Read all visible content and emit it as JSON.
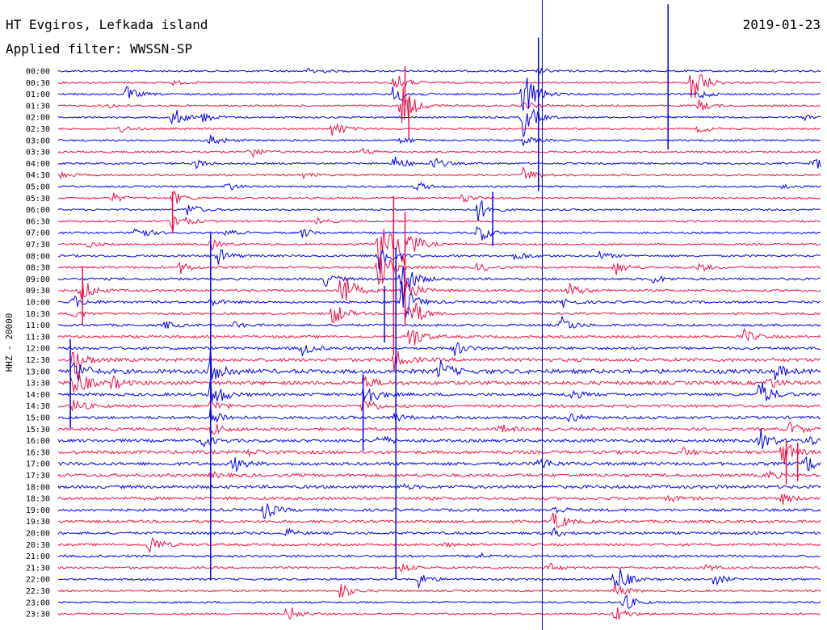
{
  "chart_data": {
    "type": "line",
    "station": "HT Evgiros, Lefkada island",
    "date": "2019-01-23",
    "filter": "Applied filter: WWSSN-SP",
    "ylabel": "HHZ - 20000",
    "row_labels": [
      "00:00",
      "00:30",
      "01:00",
      "01:30",
      "02:00",
      "02:30",
      "03:00",
      "03:30",
      "04:00",
      "04:30",
      "05:00",
      "05:30",
      "06:00",
      "06:30",
      "07:00",
      "07:30",
      "08:00",
      "08:30",
      "09:00",
      "09:30",
      "10:00",
      "10:30",
      "11:00",
      "11:30",
      "12:00",
      "12:30",
      "13:00",
      "13:30",
      "14:00",
      "14:30",
      "15:00",
      "15:30",
      "16:00",
      "16:30",
      "17:00",
      "17:30",
      "18:00",
      "18:30",
      "19:00",
      "19:30",
      "20:00",
      "20:30",
      "21:00",
      "21:30",
      "22:00",
      "22:30",
      "23:00",
      "23:30"
    ],
    "series_colors": [
      "#0000ee",
      "#ee1144"
    ],
    "marker_color": "#0000cc",
    "marker_fraction": 0.635,
    "noise_levels": [
      1,
      1,
      1,
      1,
      1,
      1,
      1,
      1,
      1,
      1,
      1,
      1,
      1,
      1,
      1,
      1,
      1.2,
      1.2,
      1.3,
      1.3,
      1.3,
      1.2,
      1.3,
      1.4,
      1.5,
      1.9,
      2.3,
      2,
      1.6,
      1.5,
      1.6,
      1.6,
      1.6,
      1.8,
      1.8,
      1.7,
      1.7,
      1.6,
      1.5,
      1.5,
      1.4,
      1.3,
      1.3,
      1.2,
      1.1,
      1.1,
      1,
      1
    ],
    "events": [
      {
        "row": 0,
        "pos": 0.33,
        "amp": 6
      },
      {
        "row": 0,
        "pos": 0.63,
        "amp": 3
      },
      {
        "row": 1,
        "pos": 0.44,
        "amp": 14
      },
      {
        "row": 1,
        "pos": 0.83,
        "amp": 38
      },
      {
        "row": 1,
        "pos": 0.15,
        "amp": 3
      },
      {
        "row": 2,
        "pos": 0.09,
        "amp": 10
      },
      {
        "row": 2,
        "pos": 0.44,
        "amp": 16
      },
      {
        "row": 2,
        "pos": 0.61,
        "amp": 40
      },
      {
        "row": 2,
        "pos": 0.84,
        "amp": 6
      },
      {
        "row": 3,
        "pos": 0.06,
        "amp": 4
      },
      {
        "row": 3,
        "pos": 0.45,
        "amp": 34
      },
      {
        "row": 3,
        "pos": 0.61,
        "amp": 6
      },
      {
        "row": 3,
        "pos": 0.84,
        "amp": 8
      },
      {
        "row": 4,
        "pos": 0.15,
        "amp": 14
      },
      {
        "row": 4,
        "pos": 0.19,
        "amp": 6
      },
      {
        "row": 4,
        "pos": 0.61,
        "amp": 26
      },
      {
        "row": 4,
        "pos": 0.98,
        "amp": 4
      },
      {
        "row": 5,
        "pos": 0.08,
        "amp": 5
      },
      {
        "row": 5,
        "pos": 0.36,
        "amp": 12
      },
      {
        "row": 5,
        "pos": 0.84,
        "amp": 5
      },
      {
        "row": 6,
        "pos": 0.2,
        "amp": 9
      },
      {
        "row": 6,
        "pos": 0.45,
        "amp": 5
      },
      {
        "row": 6,
        "pos": 0.61,
        "amp": 6
      },
      {
        "row": 7,
        "pos": 0.25,
        "amp": 10
      },
      {
        "row": 7,
        "pos": 0.4,
        "amp": 4
      },
      {
        "row": 8,
        "pos": 0.18,
        "amp": 6
      },
      {
        "row": 8,
        "pos": 0.44,
        "amp": 12
      },
      {
        "row": 8,
        "pos": 0.49,
        "amp": 9
      },
      {
        "row": 8,
        "pos": 0.99,
        "amp": 9
      },
      {
        "row": 9,
        "pos": 0.0,
        "amp": 6
      },
      {
        "row": 9,
        "pos": 0.32,
        "amp": 4
      },
      {
        "row": 9,
        "pos": 0.61,
        "amp": 10
      },
      {
        "row": 10,
        "pos": 0.22,
        "amp": 6
      },
      {
        "row": 10,
        "pos": 0.47,
        "amp": 7
      },
      {
        "row": 10,
        "pos": 0.95,
        "amp": 3
      },
      {
        "row": 11,
        "pos": 0.07,
        "amp": 7
      },
      {
        "row": 11,
        "pos": 0.15,
        "amp": 10
      },
      {
        "row": 11,
        "pos": 0.53,
        "amp": 7
      },
      {
        "row": 12,
        "pos": 0.17,
        "amp": 9
      },
      {
        "row": 12,
        "pos": 0.55,
        "amp": 16
      },
      {
        "row": 13,
        "pos": 0.15,
        "amp": 18
      },
      {
        "row": 13,
        "pos": 0.34,
        "amp": 4
      },
      {
        "row": 14,
        "pos": 0.1,
        "amp": 14
      },
      {
        "row": 14,
        "pos": 0.22,
        "amp": 4
      },
      {
        "row": 14,
        "pos": 0.32,
        "amp": 6
      },
      {
        "row": 14,
        "pos": 0.55,
        "amp": 14
      },
      {
        "row": 15,
        "pos": 0.04,
        "amp": 4
      },
      {
        "row": 15,
        "pos": 0.2,
        "amp": 7
      },
      {
        "row": 15,
        "pos": 0.42,
        "amp": 45
      },
      {
        "row": 15,
        "pos": 0.45,
        "amp": 45
      },
      {
        "row": 16,
        "pos": 0.21,
        "amp": 10
      },
      {
        "row": 16,
        "pos": 0.42,
        "amp": 30
      },
      {
        "row": 16,
        "pos": 0.6,
        "amp": 7
      },
      {
        "row": 16,
        "pos": 0.71,
        "amp": 5
      },
      {
        "row": 17,
        "pos": 0.16,
        "amp": 8
      },
      {
        "row": 17,
        "pos": 0.42,
        "amp": 30
      },
      {
        "row": 17,
        "pos": 0.55,
        "amp": 6
      },
      {
        "row": 17,
        "pos": 0.73,
        "amp": 10
      },
      {
        "row": 17,
        "pos": 0.84,
        "amp": 6
      },
      {
        "row": 18,
        "pos": 0.35,
        "amp": 9
      },
      {
        "row": 18,
        "pos": 0.45,
        "amp": 34
      },
      {
        "row": 18,
        "pos": 0.78,
        "amp": 6
      },
      {
        "row": 19,
        "pos": 0.03,
        "amp": 18
      },
      {
        "row": 19,
        "pos": 0.37,
        "amp": 34
      },
      {
        "row": 19,
        "pos": 0.45,
        "amp": 30
      },
      {
        "row": 19,
        "pos": 0.67,
        "amp": 10
      },
      {
        "row": 20,
        "pos": 0.02,
        "amp": 8
      },
      {
        "row": 20,
        "pos": 0.2,
        "amp": 5
      },
      {
        "row": 20,
        "pos": 0.45,
        "amp": 30
      },
      {
        "row": 20,
        "pos": 0.66,
        "amp": 7
      },
      {
        "row": 21,
        "pos": 0.02,
        "amp": 6
      },
      {
        "row": 21,
        "pos": 0.36,
        "amp": 18
      },
      {
        "row": 21,
        "pos": 0.46,
        "amp": 28
      },
      {
        "row": 22,
        "pos": 0.14,
        "amp": 5
      },
      {
        "row": 22,
        "pos": 0.23,
        "amp": 4
      },
      {
        "row": 22,
        "pos": 0.66,
        "amp": 12
      },
      {
        "row": 23,
        "pos": 0.46,
        "amp": 20
      },
      {
        "row": 23,
        "pos": 0.9,
        "amp": 9
      },
      {
        "row": 24,
        "pos": 0.32,
        "amp": 9
      },
      {
        "row": 24,
        "pos": 0.52,
        "amp": 9
      },
      {
        "row": 25,
        "pos": 0.02,
        "amp": 22
      },
      {
        "row": 25,
        "pos": 0.44,
        "amp": 14
      },
      {
        "row": 26,
        "pos": 0.02,
        "amp": 20
      },
      {
        "row": 26,
        "pos": 0.2,
        "amp": 28
      },
      {
        "row": 26,
        "pos": 0.5,
        "amp": 14
      },
      {
        "row": 26,
        "pos": 0.94,
        "amp": 10
      },
      {
        "row": 27,
        "pos": 0.02,
        "amp": 26
      },
      {
        "row": 27,
        "pos": 0.07,
        "amp": 8
      },
      {
        "row": 27,
        "pos": 0.4,
        "amp": 10
      },
      {
        "row": 27,
        "pos": 0.93,
        "amp": 8
      },
      {
        "row": 28,
        "pos": 0.2,
        "amp": 24
      },
      {
        "row": 28,
        "pos": 0.4,
        "amp": 22
      },
      {
        "row": 28,
        "pos": 0.67,
        "amp": 8
      },
      {
        "row": 28,
        "pos": 0.92,
        "amp": 20
      },
      {
        "row": 29,
        "pos": 0.02,
        "amp": 10
      },
      {
        "row": 29,
        "pos": 0.2,
        "amp": 8
      },
      {
        "row": 29,
        "pos": 0.4,
        "amp": 14
      },
      {
        "row": 30,
        "pos": 0.2,
        "amp": 14
      },
      {
        "row": 30,
        "pos": 0.44,
        "amp": 6
      },
      {
        "row": 30,
        "pos": 0.67,
        "amp": 7
      },
      {
        "row": 31,
        "pos": 0.2,
        "amp": 10
      },
      {
        "row": 31,
        "pos": 0.58,
        "amp": 6
      },
      {
        "row": 31,
        "pos": 0.96,
        "amp": 10
      },
      {
        "row": 32,
        "pos": 0.19,
        "amp": 8
      },
      {
        "row": 32,
        "pos": 0.42,
        "amp": 8
      },
      {
        "row": 32,
        "pos": 0.92,
        "amp": 16
      },
      {
        "row": 32,
        "pos": 0.98,
        "amp": 8
      },
      {
        "row": 33,
        "pos": 0.25,
        "amp": 4
      },
      {
        "row": 33,
        "pos": 0.82,
        "amp": 5
      },
      {
        "row": 33,
        "pos": 0.95,
        "amp": 18
      },
      {
        "row": 34,
        "pos": 0.23,
        "amp": 10
      },
      {
        "row": 34,
        "pos": 0.63,
        "amp": 10
      },
      {
        "row": 34,
        "pos": 0.98,
        "amp": 12
      },
      {
        "row": 35,
        "pos": 0.2,
        "amp": 4
      },
      {
        "row": 35,
        "pos": 0.93,
        "amp": 6
      },
      {
        "row": 36,
        "pos": 0.45,
        "amp": 3
      },
      {
        "row": 37,
        "pos": 0.8,
        "amp": 4
      },
      {
        "row": 37,
        "pos": 0.95,
        "amp": 6
      },
      {
        "row": 38,
        "pos": 0.27,
        "amp": 12
      },
      {
        "row": 38,
        "pos": 0.65,
        "amp": 5
      },
      {
        "row": 39,
        "pos": 0.65,
        "amp": 14
      },
      {
        "row": 40,
        "pos": 0.3,
        "amp": 5
      },
      {
        "row": 40,
        "pos": 0.65,
        "amp": 5
      },
      {
        "row": 41,
        "pos": 0.12,
        "amp": 14
      },
      {
        "row": 41,
        "pos": 0.5,
        "amp": 4
      },
      {
        "row": 42,
        "pos": 0.55,
        "amp": 4
      },
      {
        "row": 43,
        "pos": 0.45,
        "amp": 6
      },
      {
        "row": 43,
        "pos": 0.64,
        "amp": 8
      },
      {
        "row": 43,
        "pos": 0.85,
        "amp": 4
      },
      {
        "row": 44,
        "pos": 0.47,
        "amp": 12
      },
      {
        "row": 44,
        "pos": 0.73,
        "amp": 24
      },
      {
        "row": 44,
        "pos": 0.86,
        "amp": 8
      },
      {
        "row": 45,
        "pos": 0.37,
        "amp": 12
      },
      {
        "row": 45,
        "pos": 0.73,
        "amp": 10
      },
      {
        "row": 46,
        "pos": 0.74,
        "amp": 14
      },
      {
        "row": 47,
        "pos": 0.3,
        "amp": 12
      },
      {
        "row": 47,
        "pos": 0.73,
        "amp": 12
      }
    ],
    "spikes": [
      {
        "row": 1,
        "pos": 0.455,
        "up": 20,
        "down": 28
      },
      {
        "row": 3,
        "pos": 0.46,
        "up": 10,
        "down": 40
      },
      {
        "row": 15,
        "pos": 0.44,
        "up": 60,
        "down": 10
      },
      {
        "row": 19,
        "pos": 0.44,
        "up": 60,
        "down": 80
      },
      {
        "row": 20,
        "pos": 0.428,
        "up": 20,
        "down": 50
      },
      {
        "row": 15,
        "pos": 0.455,
        "up": 40,
        "down": 100
      },
      {
        "row": 16,
        "pos": 0.443,
        "up": 10,
        "down": 400
      },
      {
        "row": 28,
        "pos": 0.2,
        "up": 200,
        "down": 230
      },
      {
        "row": 28,
        "pos": 0.4,
        "up": 25,
        "down": 70
      },
      {
        "row": 33,
        "pos": 0.955,
        "up": 14,
        "down": 40
      },
      {
        "row": 33,
        "pos": 0.97,
        "up": 12,
        "down": 36
      },
      {
        "row": 26,
        "pos": 0.016,
        "up": 40,
        "down": 70
      },
      {
        "row": 12,
        "pos": 0.57,
        "up": 22,
        "down": 45
      },
      {
        "row": 2,
        "pos": 0.63,
        "up": 70,
        "down": 120
      },
      {
        "row": 4,
        "pos": 0.8,
        "up": 140,
        "down": 40
      },
      {
        "row": 11,
        "pos": 0.15,
        "up": 8,
        "down": 44
      },
      {
        "row": 19,
        "pos": 0.032,
        "up": 30,
        "down": 42
      }
    ]
  }
}
